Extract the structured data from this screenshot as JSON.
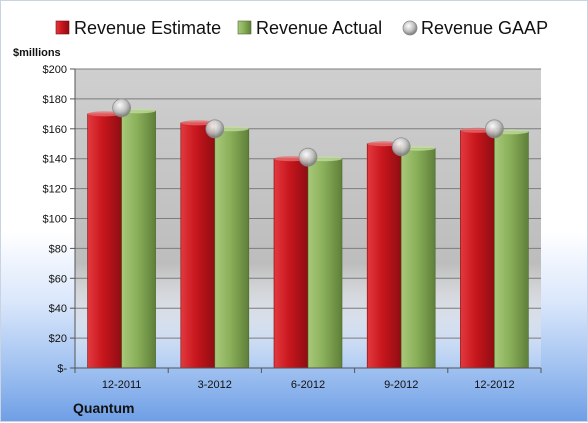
{
  "chart_data": {
    "type": "bar",
    "categories": [
      "12-2011",
      "3-2012",
      "6-2012",
      "9-2012",
      "12-2012"
    ],
    "series": [
      {
        "name": "Revenue Estimate",
        "kind": "bar",
        "color": "#c8161d",
        "values": [
          170,
          164,
          140,
          150,
          159
        ]
      },
      {
        "name": "Revenue Actual",
        "kind": "bar",
        "color": "#8ab05a",
        "values": [
          172,
          160,
          140,
          147,
          158
        ]
      },
      {
        "name": "Revenue GAAP",
        "kind": "marker",
        "color": "#c0c0c0",
        "values": [
          174,
          160,
          141,
          148,
          160
        ]
      }
    ],
    "ylabel": "$millions",
    "ylim": [
      0,
      200
    ],
    "ytick_step": 20,
    "ytick_labels": [
      "$-",
      "$20",
      "$40",
      "$60",
      "$80",
      "$100",
      "$120",
      "$140",
      "$160",
      "$180",
      "$200"
    ],
    "legend_position": "top",
    "grid": true,
    "plot_background": "#c8c8c8",
    "company": "Quantum"
  }
}
